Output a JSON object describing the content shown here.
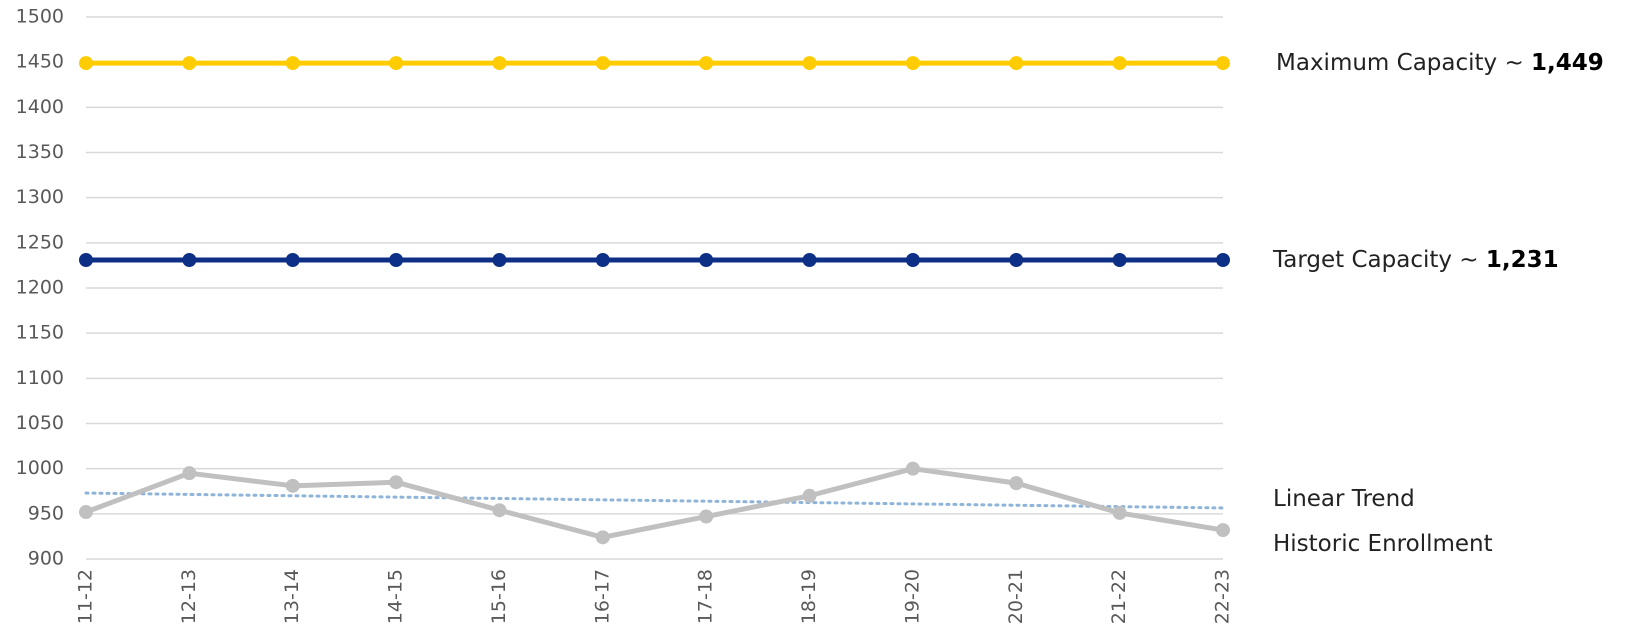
{
  "chart_data": {
    "type": "line",
    "categories": [
      "11-12",
      "12-13",
      "13-14",
      "14-15",
      "15-16",
      "16-17",
      "17-18",
      "18-19",
      "19-20",
      "20-21",
      "21-22",
      "22-23"
    ],
    "series": [
      {
        "name": "Maximum Capacity ~",
        "end_label": "1,449",
        "color": "#ffcc00",
        "markers": true,
        "values": [
          1449,
          1449,
          1449,
          1449,
          1449,
          1449,
          1449,
          1449,
          1449,
          1449,
          1449,
          1449
        ]
      },
      {
        "name": "Target Capacity ~",
        "end_label": "1,231",
        "color": "#0d2f85",
        "markers": true,
        "values": [
          1231,
          1231,
          1231,
          1231,
          1231,
          1231,
          1231,
          1231,
          1231,
          1231,
          1231,
          1231
        ]
      },
      {
        "name": "Linear Trend",
        "color": "#8fb4d9",
        "dotted": true,
        "values": [
          973,
          971.5,
          970,
          968.5,
          967,
          965.5,
          964,
          962.5,
          961,
          959.5,
          958,
          956.5
        ]
      },
      {
        "name": "Historic Enrollment",
        "color": "#c0c0c0",
        "markers": true,
        "values": [
          952,
          995,
          981,
          985,
          954,
          924,
          947,
          970,
          1000,
          984,
          951,
          932
        ]
      }
    ],
    "ylim": [
      900,
      1500
    ],
    "yticks": [
      900,
      950,
      1000,
      1050,
      1100,
      1150,
      1200,
      1250,
      1300,
      1350,
      1400,
      1450,
      1500
    ],
    "grid": true
  }
}
